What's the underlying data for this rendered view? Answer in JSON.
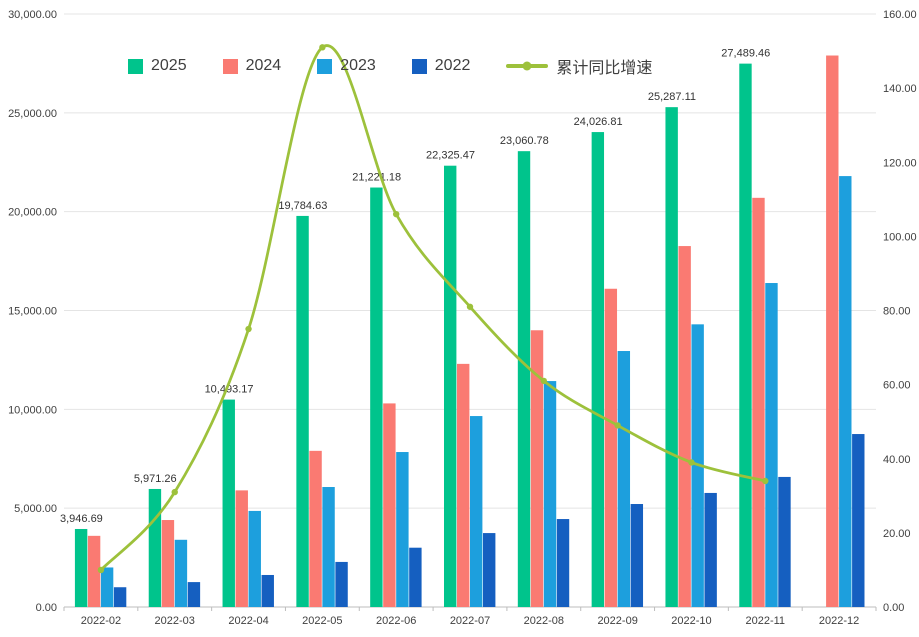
{
  "chart_data": {
    "type": "bar",
    "subtype": "grouped-bars-with-line",
    "title": "",
    "categories": [
      "2022-02",
      "2022-03",
      "2022-04",
      "2022-05",
      "2022-06",
      "2022-07",
      "2022-08",
      "2022-09",
      "2022-10",
      "2022-11",
      "2022-12"
    ],
    "bar_series": [
      {
        "name": "2025",
        "color": "#00c48c",
        "values": [
          3946.69,
          5971.26,
          10493.17,
          19784.63,
          21221.18,
          22325.47,
          23060.78,
          24026.81,
          25287.11,
          27489.46,
          null
        ]
      },
      {
        "name": "2024",
        "color": "#fa7a72",
        "values": [
          3600,
          4400,
          5900,
          7900,
          10300,
          12300,
          14000,
          16100,
          18260,
          20700,
          27900
        ]
      },
      {
        "name": "2023",
        "color": "#1d9fdd",
        "values": [
          2000,
          3400,
          4860,
          6070,
          7840,
          9660,
          11430,
          12950,
          14300,
          16390,
          21800
        ]
      },
      {
        "name": "2022",
        "color": "#155fc0",
        "values": [
          1000,
          1260,
          1620,
          2280,
          3000,
          3740,
          4450,
          5210,
          5770,
          6580,
          8750
        ]
      }
    ],
    "line_series": {
      "name": "累计同比增速",
      "color": "#9dc13b",
      "values": [
        10,
        31,
        75,
        151,
        106,
        81,
        61,
        49,
        39,
        34,
        null
      ]
    },
    "data_labels": [
      "3,946.69",
      "5,971.26",
      "10,493.17",
      "19,784.63",
      "21,221.18",
      "22,325.47",
      "23,060.78",
      "24,026.81",
      "25,287.11",
      "27,489.46",
      ""
    ],
    "left_axis": {
      "min": 0,
      "max": 30000,
      "step": 5000,
      "labels": [
        "0.00",
        "5,000.00",
        "10,000.00",
        "15,000.00",
        "20,000.00",
        "25,000.00",
        "30,000.00"
      ]
    },
    "right_axis": {
      "min": 0,
      "max": 160,
      "step": 20,
      "labels": [
        "0.00",
        "20.00",
        "40.00",
        "60.00",
        "80.00",
        "100.00",
        "120.00",
        "140.00",
        "160.00"
      ]
    },
    "legend_position": "top",
    "grid": true
  }
}
